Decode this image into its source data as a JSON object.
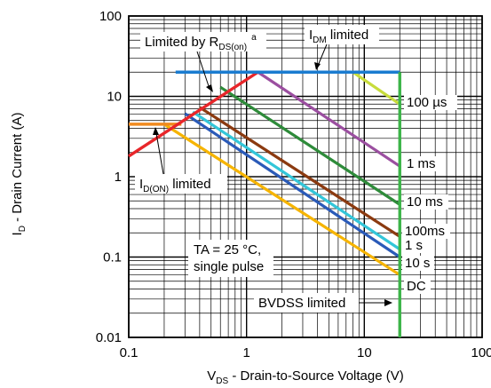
{
  "chart_data": {
    "type": "line",
    "x_scale": "log",
    "y_scale": "log",
    "xlim": [
      0.1,
      100
    ],
    "ylim": [
      0.01,
      100
    ],
    "x_ticks": [
      "0.1",
      "1",
      "10",
      "100"
    ],
    "y_ticks": [
      "0.01",
      "0.1",
      "1",
      "10",
      "100"
    ],
    "xlabel": {
      "pre": "V",
      "sub": "DS",
      "post": " - Drain-to-Source Voltage (V)"
    },
    "ylabel": {
      "pre": "I",
      "sub": "D",
      "post": " - Drain Current (A)"
    },
    "grid": true,
    "series": [
      {
        "name": "100 µs",
        "color": "#c8dc3c",
        "x": [
          8,
          20
        ],
        "y": [
          20,
          8
        ]
      },
      {
        "name": "1 ms",
        "color": "#9b4fa0",
        "x": [
          1.25,
          20
        ],
        "y": [
          20,
          1.35
        ]
      },
      {
        "name": "10 ms",
        "color": "#2e8b3a",
        "x": [
          0.6,
          20
        ],
        "y": [
          13,
          0.45
        ]
      },
      {
        "name": "100ms",
        "color": "#8b3a10",
        "x": [
          0.4,
          20
        ],
        "y": [
          7.3,
          0.18
        ]
      },
      {
        "name": "1 s",
        "color": "#33c6d9",
        "x": [
          0.35,
          20
        ],
        "y": [
          6.4,
          0.125
        ]
      },
      {
        "name": "10 s",
        "color": "#2a5ab8",
        "x": [
          0.3,
          20
        ],
        "y": [
          6.1,
          0.1
        ]
      },
      {
        "name": "DC",
        "color": "#f6b400",
        "x": [
          0.2,
          20
        ],
        "y": [
          4.5,
          0.06
        ]
      }
    ],
    "limit_lines": {
      "idm": {
        "color": "#1a7cd0",
        "x": [
          0.25,
          20
        ],
        "y": [
          20,
          20
        ]
      },
      "rds": {
        "color": "#e8262a",
        "x": [
          0.1,
          1.25
        ],
        "y": [
          1.8,
          20
        ]
      },
      "idon": {
        "color": "#f08a1e",
        "x": [
          0.1,
          0.28
        ],
        "y": [
          4.5,
          4.5
        ]
      },
      "bvdss": {
        "color": "#3cb448",
        "x": [
          20,
          20
        ],
        "y": [
          0.01,
          20
        ]
      }
    },
    "curve_labels": [
      {
        "key": "l100us",
        "text": "100 µs"
      },
      {
        "key": "l1ms",
        "text": "1 ms"
      },
      {
        "key": "l10ms",
        "text": "10 ms"
      },
      {
        "key": "l100ms",
        "text": "100ms"
      },
      {
        "key": "l1s",
        "text": "1 s"
      },
      {
        "key": "l10s",
        "text": "10 s"
      },
      {
        "key": "ldc",
        "text": "DC"
      }
    ],
    "annotations": {
      "rds": {
        "pre": "Limited by R",
        "sub": "DS(on)",
        "sup": "a"
      },
      "idm": {
        "pre": "I",
        "sub": "DM",
        "post": " limited"
      },
      "idon": {
        "pre": "I",
        "sub": "D(ON)",
        "post": " limited"
      },
      "condition_line1": "TA = 25 °C,",
      "condition_line2": "single pulse",
      "bvdss": "BVDSS limited"
    }
  }
}
